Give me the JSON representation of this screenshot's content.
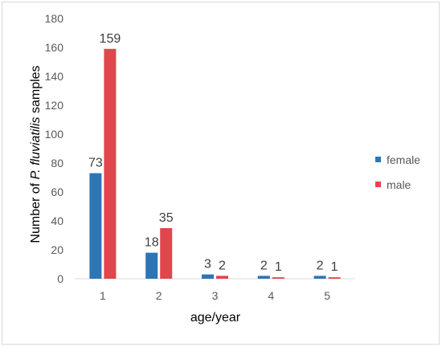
{
  "chart_data": {
    "type": "bar",
    "categories": [
      "1",
      "2",
      "3",
      "4",
      "5"
    ],
    "series": [
      {
        "name": "female",
        "values": [
          73,
          18,
          3,
          2,
          2
        ],
        "color": "#2e75b6"
      },
      {
        "name": "male",
        "values": [
          159,
          35,
          2,
          1,
          1
        ],
        "color": "#e0474c"
      }
    ],
    "xlabel": "age/year",
    "ylabel_parts": [
      "Number of ",
      "P. fluviatilis",
      " samples"
    ],
    "ylim": [
      0,
      180
    ],
    "yticks": [
      0,
      20,
      40,
      60,
      80,
      100,
      120,
      140,
      160,
      180
    ],
    "grid": false,
    "legend_position": "right"
  }
}
